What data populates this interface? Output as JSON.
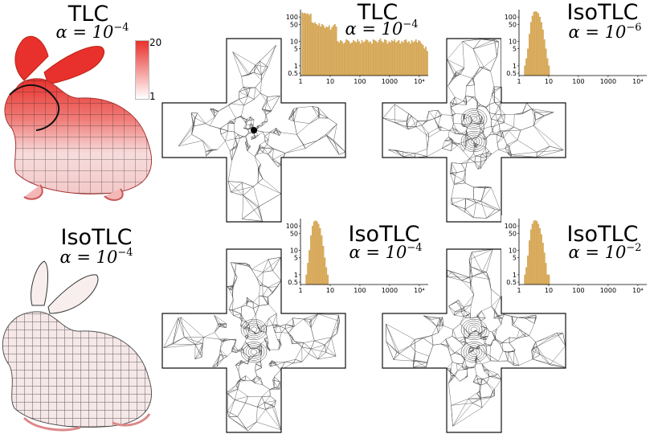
{
  "colorbar": {
    "max_label": "20",
    "min_label": "1",
    "color_high": "#e8312c",
    "color_low": "#ffffff"
  },
  "bunnies": [
    {
      "title": "TLC",
      "alpha_base": "α = 10",
      "alpha_exp": "−4",
      "tint": "red-high-distortion"
    },
    {
      "title": "IsoTLC",
      "alpha_base": "α = 10",
      "alpha_exp": "−4",
      "tint": "white-low-distortion"
    }
  ],
  "panels": [
    {
      "title": "TLC",
      "alpha_base": "α = 10",
      "alpha_exp": "−4",
      "mesh": "degenerate-center"
    },
    {
      "title": "IsoTLC",
      "alpha_base": "α = 10",
      "alpha_exp": "−6",
      "mesh": "isometric"
    },
    {
      "title": "IsoTLC",
      "alpha_base": "α = 10",
      "alpha_exp": "−4",
      "mesh": "isometric"
    },
    {
      "title": "IsoTLC",
      "alpha_base": "α = 10",
      "alpha_exp": "−2",
      "mesh": "isometric"
    }
  ],
  "histogram_axes": {
    "y_ticks": [
      "100",
      "50",
      "10",
      "5",
      "1",
      "0.5"
    ],
    "x_ticks": [
      "1",
      "10",
      "100",
      "1000",
      "10⁴"
    ],
    "bar_color": "#e2b15b"
  },
  "chart_data": [
    {
      "type": "bar",
      "title": "TLC α = 10⁻⁴",
      "x_scale": "log",
      "y_scale": "log",
      "xlim": [
        1,
        20000
      ],
      "ylim": [
        0.4,
        200
      ],
      "bins_x_start": 1.1,
      "bins_x_end": 20000,
      "values": [
        150,
        140,
        145,
        130,
        140,
        120,
        135,
        60,
        55,
        60,
        50,
        45,
        55,
        40,
        50,
        45,
        35,
        40,
        38,
        45,
        30,
        38,
        45,
        50,
        40,
        10,
        9,
        11,
        10,
        8,
        9,
        12,
        11,
        10,
        8,
        9,
        11,
        10,
        9,
        12,
        10,
        8,
        11,
        9,
        10,
        12,
        11,
        9,
        10,
        8,
        12,
        11,
        10,
        9,
        11,
        13,
        10,
        9,
        12,
        11,
        8,
        10,
        9,
        11,
        10,
        12,
        9,
        10,
        11,
        8,
        10,
        9,
        11,
        12,
        9,
        10,
        8,
        11,
        9,
        10,
        12,
        9,
        11,
        10,
        8,
        7,
        5,
        6,
        4
      ]
    },
    {
      "type": "bar",
      "title": "IsoTLC α = 10⁻⁶",
      "x_scale": "log",
      "y_scale": "log",
      "xlim": [
        1,
        20000
      ],
      "ylim": [
        0.4,
        200
      ],
      "bins_x_start": 1.5,
      "bins_x_end": 11,
      "values": [
        1,
        2,
        5,
        20,
        60,
        110,
        160,
        170,
        160,
        140,
        100,
        60,
        30,
        12,
        5,
        2,
        1
      ]
    },
    {
      "type": "bar",
      "title": "IsoTLC α = 10⁻⁴",
      "x_scale": "log",
      "y_scale": "log",
      "xlim": [
        1,
        20000
      ],
      "ylim": [
        0.4,
        200
      ],
      "bins_x_start": 1.5,
      "bins_x_end": 9,
      "values": [
        1,
        3,
        10,
        40,
        100,
        150,
        165,
        150,
        120,
        80,
        40,
        15,
        5,
        2,
        1
      ]
    },
    {
      "type": "bar",
      "title": "IsoTLC α = 10⁻²",
      "x_scale": "log",
      "y_scale": "log",
      "xlim": [
        1,
        20000
      ],
      "ylim": [
        0.4,
        200
      ],
      "bins_x_start": 1.5,
      "bins_x_end": 11,
      "values": [
        1,
        2,
        6,
        25,
        70,
        120,
        160,
        170,
        155,
        120,
        80,
        45,
        20,
        8,
        3,
        1,
        1
      ]
    }
  ]
}
